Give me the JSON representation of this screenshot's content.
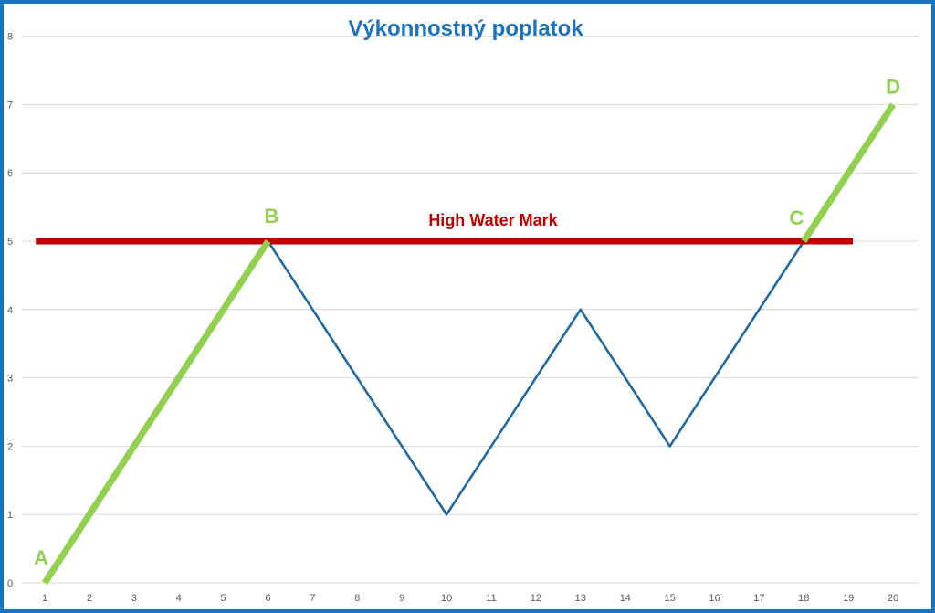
{
  "chart_data": {
    "type": "line",
    "title": "Výkonnostný poplatok",
    "xlabel": "",
    "ylabel": "",
    "x": [
      1,
      2,
      3,
      4,
      5,
      6,
      7,
      8,
      9,
      10,
      11,
      12,
      13,
      14,
      15,
      16,
      17,
      18,
      19,
      20
    ],
    "ylim": [
      0,
      8
    ],
    "yticks": [
      "0",
      "1",
      "2",
      "3",
      "4",
      "5",
      "6",
      "7",
      "8"
    ],
    "grid": "horizontal",
    "series": [
      {
        "color": "#1b6aa5",
        "points": [
          [
            6,
            5
          ],
          [
            7,
            4
          ],
          [
            8,
            3
          ],
          [
            9,
            2
          ],
          [
            10,
            1
          ],
          [
            11,
            2
          ],
          [
            12,
            3
          ],
          [
            13,
            4
          ],
          [
            14,
            3
          ],
          [
            15,
            2
          ],
          [
            16,
            3
          ],
          [
            17,
            4
          ],
          [
            18,
            5
          ]
        ]
      },
      {
        "color": "#92d050",
        "points": [
          [
            1,
            0
          ],
          [
            2,
            1
          ],
          [
            3,
            2
          ],
          [
            4,
            3
          ],
          [
            5,
            4
          ],
          [
            6,
            5
          ]
        ]
      },
      {
        "color": "#92d050",
        "points": [
          [
            18,
            5
          ],
          [
            19,
            6
          ],
          [
            20,
            7
          ]
        ]
      }
    ],
    "reference_line": {
      "label": "High Water Mark",
      "y": 5,
      "x_start": 0.8,
      "x_end": 19.1,
      "color": "#c00000"
    },
    "point_labels": [
      {
        "text": "A",
        "x": 1,
        "y": 0
      },
      {
        "text": "B",
        "x": 6,
        "y": 5
      },
      {
        "text": "C",
        "x": 18,
        "y": 5
      },
      {
        "text": "D",
        "x": 20,
        "y": 7
      }
    ],
    "colors": {
      "title": "#1b72c0",
      "border": "#1b72c0",
      "point_label": "#92d050",
      "gridline": "#d9d9d9"
    }
  }
}
